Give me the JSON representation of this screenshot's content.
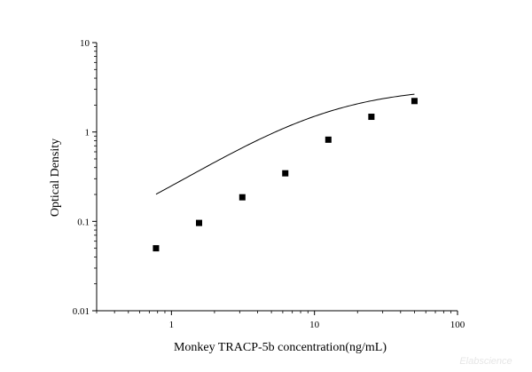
{
  "chart_data": {
    "type": "scatter",
    "title": "",
    "xlabel": "Monkey TRACP-5b concentration(ng/mL)",
    "ylabel": "Optical Density",
    "x_scale": "log",
    "y_scale": "log",
    "xlim": [
      0.3,
      100
    ],
    "ylim": [
      0.01,
      10
    ],
    "x_ticks": [
      {
        "value": 1,
        "label": "1"
      },
      {
        "value": 10,
        "label": "10"
      },
      {
        "value": 100,
        "label": "100"
      }
    ],
    "y_ticks": [
      {
        "value": 0.01,
        "label": "0.01"
      },
      {
        "value": 0.1,
        "label": "0.1"
      },
      {
        "value": 1,
        "label": "1"
      },
      {
        "value": 10,
        "label": "10"
      }
    ],
    "grid": false,
    "legend": "none",
    "series": [
      {
        "points": [
          {
            "x": 0.78,
            "y": 0.05
          },
          {
            "x": 1.56,
            "y": 0.096
          },
          {
            "x": 3.13,
            "y": 0.186
          },
          {
            "x": 6.25,
            "y": 0.345
          },
          {
            "x": 12.5,
            "y": 0.82
          },
          {
            "x": 25,
            "y": 1.48
          },
          {
            "x": 50,
            "y": 2.22
          }
        ],
        "marker": "square",
        "color": "#000000"
      }
    ],
    "fit_curve": {
      "type": "4PL",
      "color": "#000000",
      "bottom": 0.028,
      "top": 3.2,
      "ec50": 11.5,
      "slope": 1.06
    }
  },
  "watermark": "Elabscience"
}
